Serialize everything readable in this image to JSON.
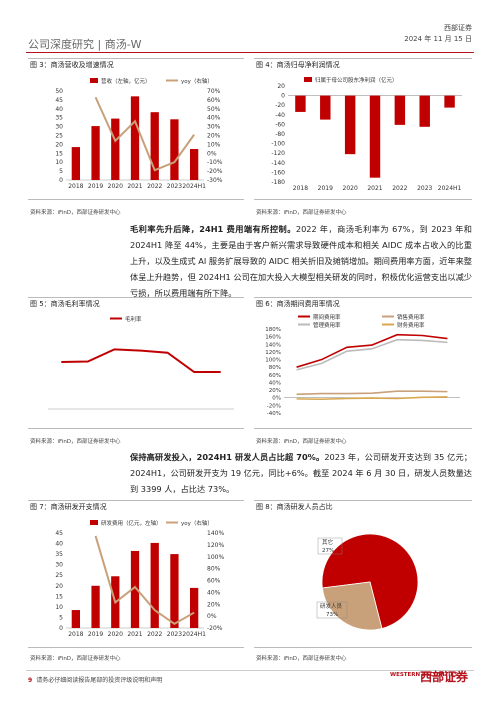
{
  "header": {
    "left": "公司深度研究 | 商汤-W",
    "brand": "西部证券",
    "date": "2024 年 11 月 15 日"
  },
  "figures": {
    "fig3": {
      "title": "图 3：商汤营收及增速情况",
      "source": "资料来源：iFinD，西部证券研发中心"
    },
    "fig4": {
      "title": "图 4：商汤归母净利润情况",
      "source": "资料来源：iFinD，西部证券研发中心"
    },
    "fig5": {
      "title": "图 5：商汤毛利率情况",
      "source": "资料来源：iFinD，西部证券研发中心"
    },
    "fig6": {
      "title": "图 6：商汤期间费用率情况",
      "source": "资料来源：iFinD，西部证券研发中心"
    },
    "fig7": {
      "title": "图 7：商汤研发开支情况",
      "source": "资料来源：iFinD，西部证券研发中心"
    },
    "fig8": {
      "title": "图 8：商汤研发人员占比",
      "source": "资料来源：iFinD，西部证券研发中心"
    }
  },
  "paragraphs": {
    "p1_bold": "毛利率先升后降，24H1 费用端有所控制。",
    "p1_rest": "2022 年，商汤毛利率为 67%，到 2023 年和 2024H1 降至 44%，主要是由于客户新兴需求导致硬件成本和相关 AIDC 成本占收入的比重上升，以及生成式 AI 服务扩展导致的 AIDC 相关折旧及摊销增加。期间费用率方面，近年来整体呈上升趋势，但 2024H1 公司在加大投入大模型相关研发的同时，积极优化运营支出以减少亏损，所以费用端有所下降。",
    "p2_bold": "保持高研发投入，2024H1 研发人员占比超 70%。",
    "p2_rest": "2023 年，公司研发开支达到 35 亿元；2024H1，公司研发开支为 19 亿元，同比+6%。截至 2024 年 6 月 30 日，研发人员数量达到 3399 人，占比达 73%。"
  },
  "footer": {
    "page": "9",
    "text": "请务必仔细阅读报告尾部的投资评级说明和声明",
    "logo_en": "WESTERN SECURITIES",
    "logo_cn": "西部证券"
  },
  "colors": {
    "red": "#c00000",
    "red2": "#b5121b",
    "tan": "#c8a07a",
    "gray": "#a6a6a6"
  },
  "chart_data": [
    {
      "id": "fig3",
      "type": "bar",
      "categories": [
        "2018",
        "2019",
        "2020",
        "2021",
        "2022",
        "2023",
        "2024H1"
      ],
      "series": [
        {
          "name": "营收（左轴，亿元）",
          "type": "bar",
          "values": [
            18.5,
            30.3,
            34.5,
            47.0,
            38.1,
            34.1,
            17.4
          ]
        },
        {
          "name": "yoy（右轴）",
          "type": "line",
          "axis": "right",
          "values": [
            null,
            0.63,
            0.14,
            0.36,
            -0.19,
            -0.1,
            0.21
          ]
        }
      ],
      "ylim": [
        0,
        50
      ],
      "yticks": [
        0,
        5,
        10,
        15,
        20,
        25,
        30,
        35,
        40,
        45,
        50
      ],
      "y2lim": [
        -0.3,
        0.7
      ],
      "y2ticks": [
        "-30%",
        "-20%",
        "-10%",
        "0%",
        "10%",
        "20%",
        "30%",
        "40%",
        "50%",
        "60%",
        "70%"
      ]
    },
    {
      "id": "fig4",
      "type": "bar",
      "categories": [
        "2018",
        "2019",
        "2020",
        "2021",
        "2022",
        "2023",
        "2024H1"
      ],
      "series": [
        {
          "name": "归属于母公司股东净利润（亿元）",
          "values": [
            -34,
            -50,
            -122,
            -171,
            -61,
            -65,
            -25
          ]
        }
      ],
      "ylim": [
        -180,
        20
      ],
      "yticks": [
        20,
        0,
        -20,
        -40,
        -60,
        -80,
        -100,
        -120,
        -140,
        -160,
        -180
      ]
    },
    {
      "id": "fig5",
      "type": "line",
      "categories": [
        "2018",
        "2019",
        "2020",
        "2021",
        "2022",
        "2023",
        "2024H1"
      ],
      "series": [
        {
          "name": "毛利率",
          "values": [
            0.56,
            0.565,
            0.71,
            0.695,
            0.67,
            0.44,
            0.44
          ]
        }
      ],
      "ylim": [
        0,
        1
      ]
    },
    {
      "id": "fig6",
      "type": "line",
      "categories": [
        "2018",
        "2019",
        "2020",
        "2021",
        "2022",
        "2023",
        "2024H1"
      ],
      "series": [
        {
          "name": "期间费用率",
          "values": [
            0.8,
            1.0,
            1.32,
            1.38,
            1.65,
            1.63,
            1.55
          ]
        },
        {
          "name": "销售费用率",
          "values": [
            0.09,
            0.11,
            0.11,
            0.12,
            0.17,
            0.17,
            0.16
          ]
        },
        {
          "name": "管理费用率",
          "values": [
            0.73,
            0.9,
            1.22,
            1.28,
            1.52,
            1.5,
            1.45
          ]
        },
        {
          "name": "财务费用率",
          "values": [
            -0.03,
            -0.04,
            -0.02,
            -0.01,
            -0.02,
            0.01,
            0.02
          ]
        }
      ],
      "ylim": [
        -0.4,
        1.8
      ],
      "yticks": [
        "180%",
        "160%",
        "140%",
        "120%",
        "100%",
        "80%",
        "60%",
        "40%",
        "20%",
        "0%",
        "-20%",
        "-40%"
      ]
    },
    {
      "id": "fig7",
      "type": "bar",
      "categories": [
        "2018",
        "2019",
        "2020",
        "2021",
        "2022",
        "2023",
        "2024H1"
      ],
      "series": [
        {
          "name": "研发费用（亿元，左轴）",
          "type": "bar",
          "values": [
            8.5,
            20.0,
            24.5,
            36.5,
            40.3,
            35.0,
            19.0
          ]
        },
        {
          "name": "yoy（右轴）",
          "type": "line",
          "axis": "right",
          "values": [
            null,
            1.35,
            0.23,
            0.49,
            0.1,
            -0.13,
            0.06
          ]
        }
      ],
      "ylim": [
        0,
        45
      ],
      "yticks": [
        0,
        5,
        10,
        15,
        20,
        25,
        30,
        35,
        40,
        45
      ],
      "y2lim": [
        -0.2,
        1.4
      ],
      "y2ticks": [
        "-20%",
        "0%",
        "20%",
        "40%",
        "60%",
        "80%",
        "100%",
        "120%",
        "140%"
      ]
    },
    {
      "id": "fig8",
      "type": "pie",
      "slices": [
        {
          "name": "研发人员",
          "label": "73%",
          "value": 0.73
        },
        {
          "name": "其它",
          "label": "27%",
          "value": 0.27
        }
      ]
    }
  ]
}
